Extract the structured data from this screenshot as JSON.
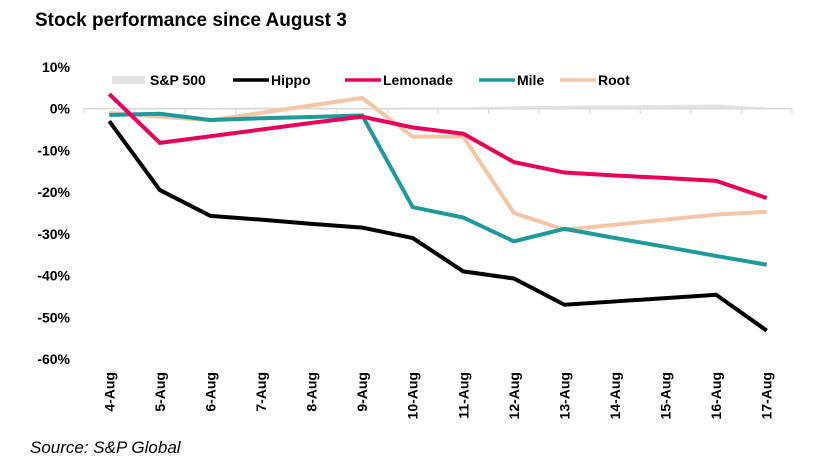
{
  "chart_data": {
    "type": "line",
    "title": "Stock performance since August 3",
    "source": "Source: S&P Global",
    "xlabel": "",
    "ylabel": "",
    "categories": [
      "4-Aug",
      "5-Aug",
      "6-Aug",
      "7-Aug",
      "8-Aug",
      "9-Aug",
      "10-Aug",
      "11-Aug",
      "12-Aug",
      "13-Aug",
      "14-Aug",
      "15-Aug",
      "16-Aug",
      "17-Aug"
    ],
    "ylim": [
      -60,
      10
    ],
    "yticks": [
      10,
      0,
      -10,
      -20,
      -30,
      -40,
      -50,
      -60
    ],
    "ytick_labels": [
      "10%",
      "0%",
      "-10%",
      "-20%",
      "-30%",
      "-40%",
      "-50%",
      "-60%"
    ],
    "grid": false,
    "legend_position": "top",
    "series": [
      {
        "name": "S&P 500",
        "kind": "area",
        "color": "#e3e3e3",
        "values": [
          0.1,
          0.1,
          0.2,
          0.3,
          0.3,
          0.2,
          0.3,
          0.3,
          0.6,
          0.7,
          0.8,
          0.9,
          1.0,
          0.3
        ]
      },
      {
        "name": "Hippo",
        "kind": "line",
        "color": "#000000",
        "values": [
          -3.0,
          -19.5,
          -25.7,
          -26.6,
          -27.6,
          -28.5,
          -31.0,
          -39.0,
          -40.7,
          -47.0,
          -46.2,
          -45.4,
          -44.6,
          -53.2
        ]
      },
      {
        "name": "Lemonade",
        "kind": "line",
        "color": "#e8005a",
        "values": [
          3.5,
          -8.2,
          -6.6,
          -5.0,
          -3.4,
          -1.9,
          -4.5,
          -6.0,
          -12.8,
          -15.3,
          -16.0,
          -16.6,
          -17.3,
          -21.4
        ]
      },
      {
        "name": "Mile",
        "kind": "line",
        "color": "#1e9a9a",
        "values": [
          -1.5,
          -1.2,
          -2.7,
          -2.3,
          -2.0,
          -1.6,
          -23.6,
          -26.1,
          -31.8,
          -28.8,
          -31.0,
          -33.1,
          -35.3,
          -37.4
        ]
      },
      {
        "name": "Root",
        "kind": "line",
        "color": "#f5c6a5",
        "values": [
          -1.0,
          -1.9,
          -2.8,
          -1.0,
          0.8,
          2.6,
          -6.7,
          -6.7,
          -25.0,
          -29.0,
          -27.8,
          -26.6,
          -25.4,
          -24.7
        ]
      }
    ]
  }
}
